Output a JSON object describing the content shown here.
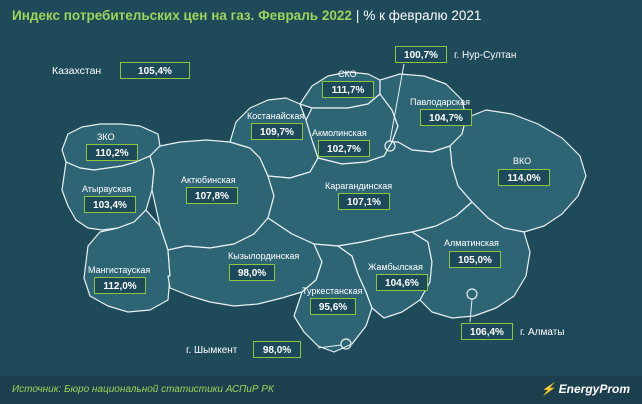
{
  "title": {
    "main": "Индекс потребительских цен на газ. Февраль 2022",
    "separator": "|",
    "subtitle": "% к февралю 2021"
  },
  "country": {
    "name": "Казахстан",
    "value": "105,4%"
  },
  "regions": [
    {
      "id": "sko",
      "name": "СКО",
      "value": "111,7%"
    },
    {
      "id": "pavlodar",
      "name": "Павлодарская",
      "value": "104,7%"
    },
    {
      "id": "kostanay",
      "name": "Костанайская",
      "value": "109,7%"
    },
    {
      "id": "akmola",
      "name": "Акмолинская",
      "value": "102,7%"
    },
    {
      "id": "zko",
      "name": "ЗКО",
      "value": "110,2%"
    },
    {
      "id": "vko",
      "name": "ВКО",
      "value": "114,0%"
    },
    {
      "id": "atyrau",
      "name": "Атырауская",
      "value": "103,4%"
    },
    {
      "id": "aktobe",
      "name": "Актюбинская",
      "value": "107,8%"
    },
    {
      "id": "karaganda",
      "name": "Карагандинская",
      "value": "107,1%"
    },
    {
      "id": "almaty_reg",
      "name": "Алматинская",
      "value": "105,0%"
    },
    {
      "id": "mangistau",
      "name": "Мангистауская",
      "value": "112,0%"
    },
    {
      "id": "kyzylorda",
      "name": "Кызылординская",
      "value": "98,0%"
    },
    {
      "id": "zhambyl",
      "name": "Жамбылская",
      "value": "104,6%"
    },
    {
      "id": "turkestan",
      "name": "Туркестанская",
      "value": "95,6%"
    }
  ],
  "cities": [
    {
      "id": "nur_sultan",
      "name": "г. Нур-Султан",
      "value": "100,7%"
    },
    {
      "id": "almaty",
      "name": "г. Алматы",
      "value": "106,4%"
    },
    {
      "id": "shymkent",
      "name": "г. Шымкент",
      "value": "98,0%"
    }
  ],
  "footer": {
    "source": "Источник: Бюро национальной статистики АСПиР РК",
    "logo": "EnergyProm"
  },
  "colors": {
    "background": "#1f4a5a",
    "land": "#2e6575",
    "border": "#e8f0f2",
    "accent": "#8cc63f"
  }
}
